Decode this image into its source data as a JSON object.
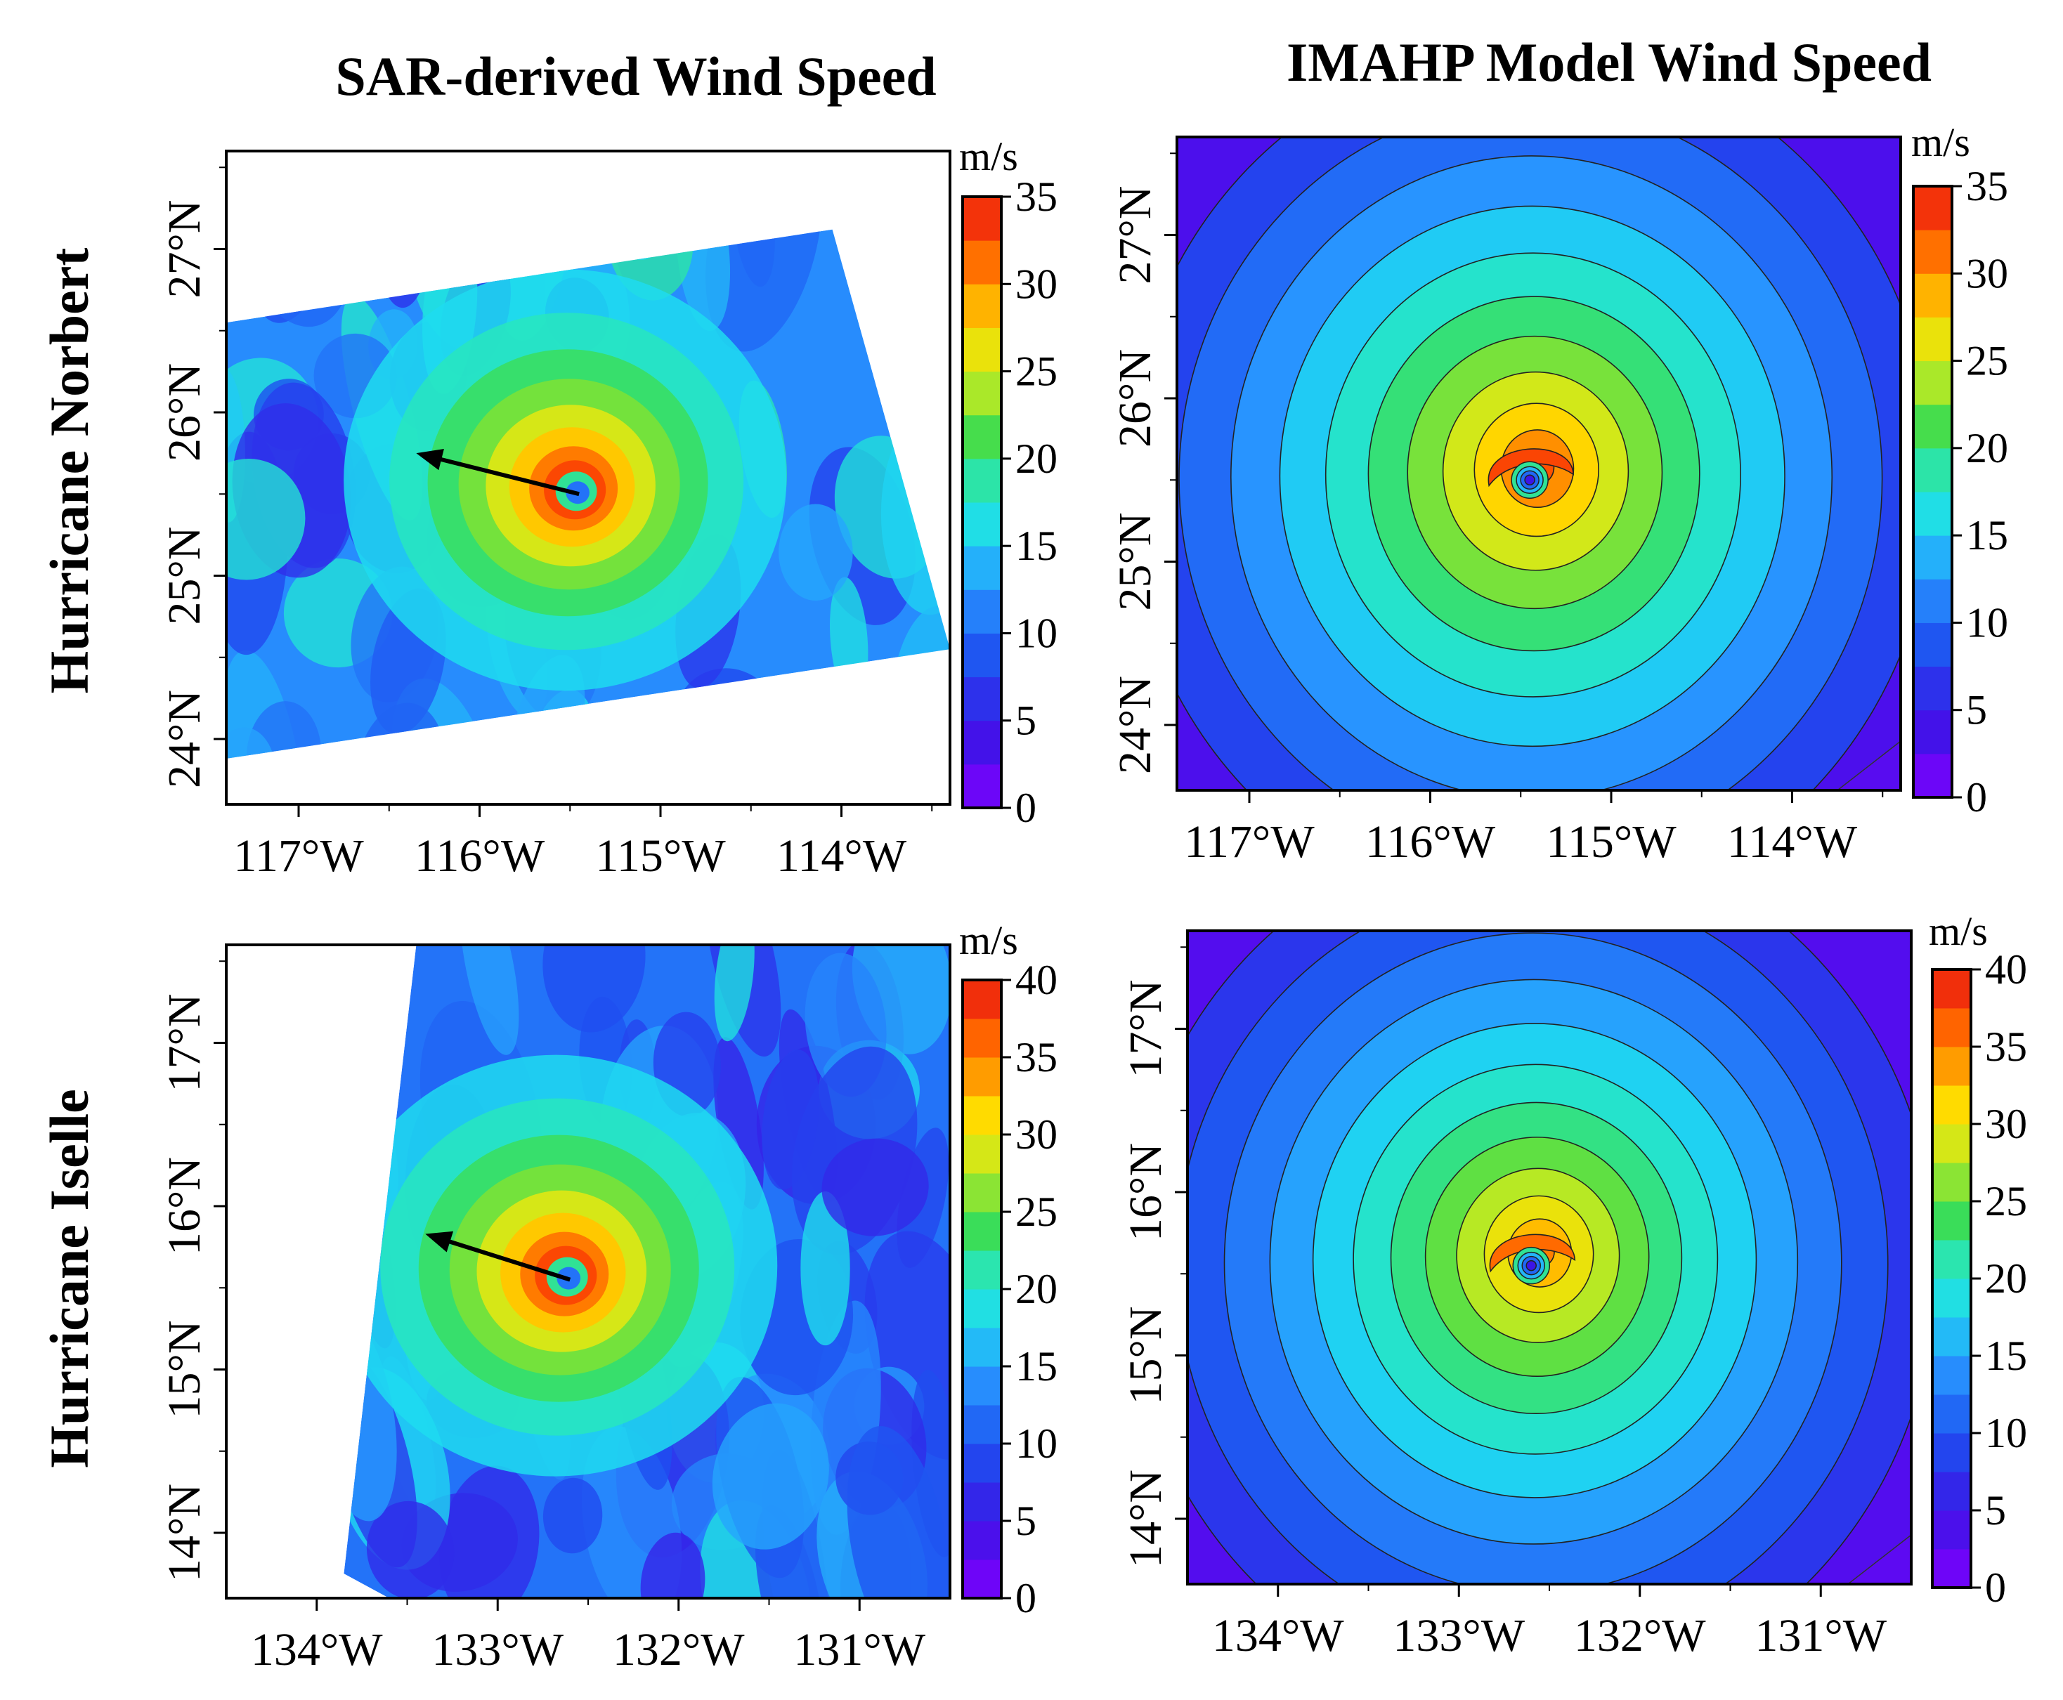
{
  "figure": {
    "column_titles": [
      "SAR-derived Wind Speed",
      "IMAHP Model Wind Speed"
    ],
    "row_titles": [
      "Hurricane Norbert",
      "Hurricane Iselle"
    ]
  },
  "chart_data": [
    {
      "type": "heatmap",
      "id": "norbert-sar",
      "title": "SAR-derived Wind Speed",
      "row": "Hurricane Norbert",
      "x": [
        "117°W",
        "116°W",
        "115°W",
        "114°W"
      ],
      "x_values": [
        -117,
        -116,
        -115,
        -114
      ],
      "xlim": [
        -117.4,
        -113.4
      ],
      "y": [
        "24°N",
        "25°N",
        "26°N",
        "27°N"
      ],
      "y_values": [
        24,
        25,
        26,
        27
      ],
      "ylim": [
        23.6,
        27.6
      ],
      "center": {
        "lon": -115.45,
        "lat": 25.5,
        "max_speed": 35
      },
      "motion_arrow": {
        "from": [
          -115.45,
          25.5
        ],
        "to": [
          -116.35,
          25.75
        ]
      },
      "swath": [
        [
          -117.4,
          26.55
        ],
        [
          -114.05,
          27.12
        ],
        [
          -113.4,
          24.55
        ],
        [
          -117.4,
          23.88
        ]
      ],
      "colorbar": {
        "unit": "m/s",
        "min": 0,
        "max": 35,
        "ticks": [
          0,
          5,
          10,
          15,
          20,
          25,
          30,
          35
        ]
      }
    },
    {
      "type": "heatmap",
      "id": "norbert-model",
      "title": "IMAHP Model Wind Speed",
      "row": "Hurricane Norbert",
      "x": [
        "117°W",
        "116°W",
        "115°W",
        "114°W"
      ],
      "x_values": [
        -117,
        -116,
        -115,
        -114
      ],
      "xlim": [
        -117.4,
        -113.4
      ],
      "y": [
        "24°N",
        "25°N",
        "26°N",
        "27°N"
      ],
      "y_values": [
        24,
        25,
        26,
        27
      ],
      "ylim": [
        23.6,
        27.6
      ],
      "center": {
        "lon": -115.45,
        "lat": 25.5,
        "max_speed": 33
      },
      "contour_levels": [
        5,
        7.5,
        10,
        12.5,
        15,
        17.5,
        20,
        22.5,
        25,
        27.5,
        30
      ],
      "colorbar": {
        "unit": "m/s",
        "min": 0,
        "max": 35,
        "ticks": [
          0,
          5,
          10,
          15,
          20,
          25,
          30,
          35
        ]
      }
    },
    {
      "type": "heatmap",
      "id": "iselle-sar",
      "title": "SAR-derived Wind Speed",
      "row": "Hurricane Iselle",
      "x": [
        "134°W",
        "133°W",
        "132°W",
        "131°W"
      ],
      "x_values": [
        -134,
        -133,
        -132,
        -131
      ],
      "xlim": [
        -134.5,
        -130.5
      ],
      "y": [
        "14°N",
        "15°N",
        "16°N",
        "17°N"
      ],
      "y_values": [
        14,
        15,
        16,
        17
      ],
      "ylim": [
        13.6,
        17.6
      ],
      "center": {
        "lon": -132.6,
        "lat": 15.55,
        "max_speed": 40
      },
      "motion_arrow": {
        "from": [
          -132.6,
          15.55
        ],
        "to": [
          -133.4,
          15.83
        ]
      },
      "swath": [
        [
          -133.45,
          17.6
        ],
        [
          -130.5,
          17.6
        ],
        [
          -130.5,
          13.6
        ],
        [
          -133.6,
          13.6
        ],
        [
          -133.85,
          13.75
        ]
      ],
      "colorbar": {
        "unit": "m/s",
        "min": 0,
        "max": 40,
        "ticks": [
          0,
          5,
          10,
          15,
          20,
          25,
          30,
          35,
          40
        ]
      }
    },
    {
      "type": "heatmap",
      "id": "iselle-model",
      "title": "IMAHP Model Wind Speed",
      "row": "Hurricane Iselle",
      "x": [
        "134°W",
        "133°W",
        "132°W",
        "131°W"
      ],
      "x_values": [
        -134,
        -133,
        -132,
        -131
      ],
      "xlim": [
        -134.5,
        -130.5
      ],
      "y": [
        "14°N",
        "15°N",
        "16°N",
        "17°N"
      ],
      "y_values": [
        14,
        15,
        16,
        17
      ],
      "ylim": [
        13.6,
        17.6
      ],
      "center": {
        "lon": -132.6,
        "lat": 15.55,
        "max_speed": 36
      },
      "contour_levels": [
        5,
        7.5,
        10,
        12.5,
        15,
        17.5,
        20,
        22.5,
        25,
        27.5,
        30,
        32.5
      ],
      "colorbar": {
        "unit": "m/s",
        "min": 0,
        "max": 40,
        "ticks": [
          0,
          5,
          10,
          15,
          20,
          25,
          30,
          35,
          40
        ]
      }
    }
  ]
}
